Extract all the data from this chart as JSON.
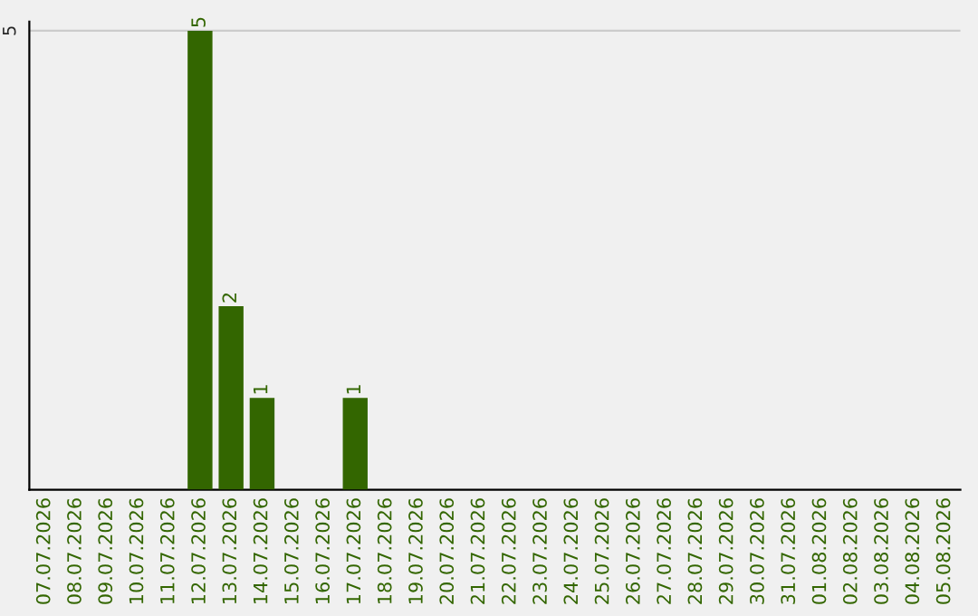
{
  "chart_data": {
    "type": "bar",
    "categories": [
      "07.07.2026",
      "08.07.2026",
      "09.07.2026",
      "10.07.2026",
      "11.07.2026",
      "12.07.2026",
      "13.07.2026",
      "14.07.2026",
      "15.07.2026",
      "16.07.2026",
      "17.07.2026",
      "18.07.2026",
      "19.07.2026",
      "20.07.2026",
      "21.07.2026",
      "22.07.2026",
      "23.07.2026",
      "24.07.2026",
      "25.07.2026",
      "26.07.2026",
      "27.07.2026",
      "28.07.2026",
      "29.07.2026",
      "30.07.2026",
      "31.07.2026",
      "01.08.2026",
      "02.08.2026",
      "03.08.2026",
      "04.08.2026",
      "05.08.2026"
    ],
    "values": [
      0,
      0,
      0,
      0,
      0,
      5,
      2,
      1,
      0,
      0,
      1,
      0,
      0,
      0,
      0,
      0,
      0,
      0,
      0,
      0,
      0,
      0,
      0,
      0,
      0,
      0,
      0,
      0,
      0,
      0
    ],
    "value_labels": [
      null,
      null,
      null,
      null,
      null,
      "5",
      "2",
      "1",
      null,
      null,
      "1",
      null,
      null,
      null,
      null,
      null,
      null,
      null,
      null,
      null,
      null,
      null,
      null,
      null,
      null,
      null,
      null,
      null,
      null,
      null
    ],
    "color": "#336600",
    "ylim": [
      0,
      5.1
    ],
    "yticks": [
      5
    ],
    "grid": "y",
    "legend": false
  }
}
